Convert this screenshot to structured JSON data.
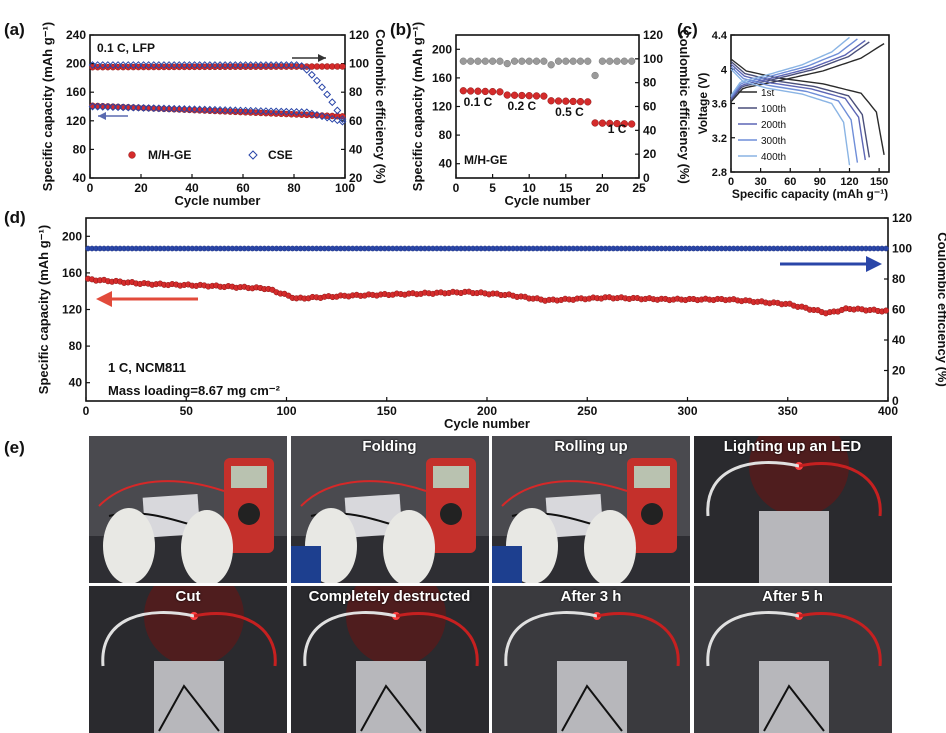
{
  "colors": {
    "red": "#d42b2b",
    "blue": "#2a46a8",
    "grey": "#9a9a9a",
    "darkred": "#8a1414"
  },
  "panel_labels": {
    "a": "(a)",
    "b": "(b)",
    "c": "(c)",
    "d": "(d)",
    "e": "(e)"
  },
  "chart_data": [
    {
      "id": "a",
      "type": "scatter",
      "xlabel": "Cycle number",
      "ylabel": "Specific capacity (mAh g⁻¹)",
      "y2label": "Coulombic efficiency (%)",
      "xlim": [
        0,
        100
      ],
      "ylim": [
        40,
        240
      ],
      "y2lim": [
        20,
        120
      ],
      "xticks": [
        0,
        20,
        40,
        60,
        80,
        100
      ],
      "yticks": [
        40,
        80,
        120,
        160,
        200,
        240
      ],
      "y2ticks": [
        20,
        40,
        60,
        80,
        100,
        120
      ],
      "annotation": "0.1 C, LFP",
      "legend": [
        {
          "name": "M/H-GE",
          "marker": "filled-circle"
        },
        {
          "name": "CSE",
          "marker": "open-diamond"
        }
      ],
      "series": [
        {
          "name": "M/H-GE",
          "axis": "left",
          "x_range": [
            1,
            100
          ],
          "y_start": 141,
          "y_end": 126,
          "marker": "filled-circle"
        },
        {
          "name": "M/H-GE",
          "axis": "right",
          "x_range": [
            1,
            100
          ],
          "y_start": 97.5,
          "y_end": 98,
          "marker": "filled-circle"
        },
        {
          "name": "CSE",
          "axis": "left",
          "x_range": [
            1,
            100
          ],
          "y_start": 140,
          "y_end": 118,
          "marker": "open-diamond"
        },
        {
          "name": "CSE",
          "axis": "right",
          "x_range": [
            1,
            100
          ],
          "y_start": 99,
          "y_end": 58,
          "marker": "open-diamond"
        }
      ]
    },
    {
      "id": "b",
      "type": "scatter",
      "xlabel": "Cycle number",
      "ylabel": "Specific capacity (mAh g⁻¹)",
      "y2label": "Coulombic efficiency (%)",
      "xlim": [
        0,
        25
      ],
      "ylim": [
        20,
        220
      ],
      "y2lim": [
        0,
        120
      ],
      "xticks": [
        0,
        5,
        10,
        15,
        20,
        25
      ],
      "yticks": [
        40,
        80,
        120,
        160,
        200
      ],
      "y2ticks": [
        0,
        20,
        40,
        60,
        80,
        100,
        120
      ],
      "annotation": "M/H-GE",
      "rate_labels": [
        {
          "text": "0.1 C",
          "x": 3,
          "y": 121
        },
        {
          "text": "0.2 C",
          "x": 9,
          "y": 115
        },
        {
          "text": "0.5 C",
          "x": 15.5,
          "y": 107
        },
        {
          "text": "1 C",
          "x": 22,
          "y": 83
        }
      ],
      "capacity": [
        {
          "cycles": [
            1,
            6
          ],
          "value": 142
        },
        {
          "cycles": [
            7,
            12
          ],
          "value": 136
        },
        {
          "cycles": [
            13,
            18
          ],
          "value": 128
        },
        {
          "cycles": [
            19,
            24
          ],
          "value": 97
        }
      ],
      "efficiency": [
        {
          "cycles": [
            1,
            24
          ],
          "value": 98,
          "outliers": [
            {
              "x": 7,
              "y": 96
            },
            {
              "x": 13,
              "y": 95
            },
            {
              "x": 19,
              "y": 86
            }
          ]
        }
      ]
    },
    {
      "id": "c",
      "type": "line",
      "xlabel": "Specific capacity (mAh g⁻¹)",
      "ylabel": "Voltage (V)",
      "xlim": [
        0,
        160
      ],
      "ylim": [
        2.8,
        4.4
      ],
      "xticks": [
        0,
        30,
        60,
        90,
        120,
        150
      ],
      "yticks": [
        2.8,
        3.2,
        3.6,
        4.0,
        4.4
      ],
      "legend": [
        "1st",
        "100th",
        "200th",
        "300th",
        "400th"
      ],
      "series": [
        {
          "name": "1st",
          "capacity": 155,
          "color": "#2b2b2b"
        },
        {
          "name": "100th",
          "capacity": 140,
          "color": "#4a4f7a"
        },
        {
          "name": "200th",
          "capacity": 136,
          "color": "#5d66b5"
        },
        {
          "name": "300th",
          "capacity": 128,
          "color": "#6f8ed8"
        },
        {
          "name": "400th",
          "capacity": 120,
          "color": "#8ab4e4"
        }
      ]
    },
    {
      "id": "d",
      "type": "scatter",
      "xlabel": "Cycle number",
      "ylabel": "Specific capacity (mAh g⁻¹)",
      "y2label": "Coulombic efficiency (%)",
      "xlim": [
        0,
        400
      ],
      "ylim": [
        20,
        220
      ],
      "y2lim": [
        0,
        120
      ],
      "xticks": [
        0,
        50,
        100,
        150,
        200,
        250,
        300,
        350,
        400
      ],
      "yticks": [
        40,
        80,
        120,
        160,
        200
      ],
      "y2ticks": [
        0,
        20,
        40,
        60,
        80,
        100,
        120
      ],
      "annotation_lines": [
        "1 C, NCM811",
        "Mass loading=8.67 mg cm⁻²"
      ],
      "capacity_points": [
        [
          1,
          153
        ],
        [
          30,
          148
        ],
        [
          60,
          146
        ],
        [
          90,
          143
        ],
        [
          105,
          132
        ],
        [
          130,
          135
        ],
        [
          160,
          137
        ],
        [
          190,
          139
        ],
        [
          210,
          136
        ],
        [
          230,
          130
        ],
        [
          260,
          133
        ],
        [
          290,
          131
        ],
        [
          320,
          131
        ],
        [
          350,
          126
        ],
        [
          370,
          116
        ],
        [
          380,
          121
        ],
        [
          400,
          118
        ]
      ],
      "efficiency_value": 100
    }
  ],
  "photos": [
    {
      "caption": "",
      "type": "multimeter"
    },
    {
      "caption": "Folding",
      "type": "multimeter"
    },
    {
      "caption": "Rolling up",
      "type": "multimeter"
    },
    {
      "caption": "Lighting up an LED",
      "type": "led"
    },
    {
      "caption": "Cut",
      "type": "led"
    },
    {
      "caption": "Completely destructed",
      "type": "led"
    },
    {
      "caption": "After 3 h",
      "type": "led-dim"
    },
    {
      "caption": "After 5 h",
      "type": "led-dim"
    }
  ]
}
